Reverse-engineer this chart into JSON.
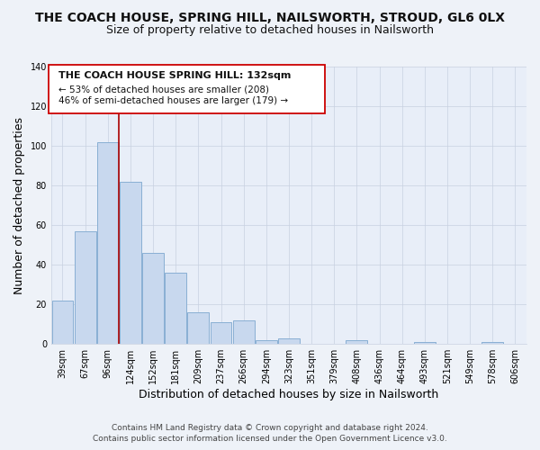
{
  "title": "THE COACH HOUSE, SPRING HILL, NAILSWORTH, STROUD, GL6 0LX",
  "subtitle": "Size of property relative to detached houses in Nailsworth",
  "xlabel": "Distribution of detached houses by size in Nailsworth",
  "ylabel": "Number of detached properties",
  "categories": [
    "39sqm",
    "67sqm",
    "96sqm",
    "124sqm",
    "152sqm",
    "181sqm",
    "209sqm",
    "237sqm",
    "266sqm",
    "294sqm",
    "323sqm",
    "351sqm",
    "379sqm",
    "408sqm",
    "436sqm",
    "464sqm",
    "493sqm",
    "521sqm",
    "549sqm",
    "578sqm",
    "606sqm"
  ],
  "values": [
    22,
    57,
    102,
    82,
    46,
    36,
    16,
    11,
    12,
    2,
    3,
    0,
    0,
    2,
    0,
    0,
    1,
    0,
    0,
    1,
    0
  ],
  "bar_color": "#c8d8ee",
  "bar_edge_color": "#89afd4",
  "vline_color": "#aa0000",
  "vline_x_index": 2.5,
  "annotation_title": "THE COACH HOUSE SPRING HILL: 132sqm",
  "annotation_line1": "← 53% of detached houses are smaller (208)",
  "annotation_line2": "46% of semi-detached houses are larger (179) →",
  "ylim": [
    0,
    140
  ],
  "yticks": [
    0,
    20,
    40,
    60,
    80,
    100,
    120,
    140
  ],
  "footer1": "Contains HM Land Registry data © Crown copyright and database right 2024.",
  "footer2": "Contains public sector information licensed under the Open Government Licence v3.0.",
  "bg_color": "#eef2f8",
  "plot_bg_color": "#e8eef8",
  "grid_color": "#c8d0e0",
  "title_fontsize": 10,
  "subtitle_fontsize": 9,
  "axis_label_fontsize": 9,
  "tick_fontsize": 7,
  "footer_fontsize": 6.5,
  "ann_fontsize_title": 8,
  "ann_fontsize_body": 7.5
}
